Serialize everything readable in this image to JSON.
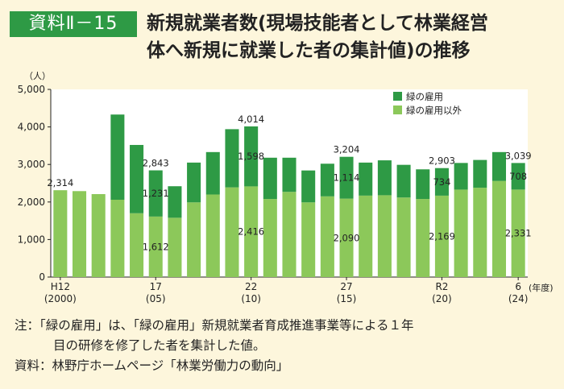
{
  "header": {
    "badge": "資料Ⅱ－15",
    "title_line1": "新規就業者数(現場技能者として林業経営",
    "title_line2": "体へ新規に就業した者の集計値)の推移"
  },
  "chart_data": {
    "type": "bar",
    "stacked": true,
    "y_unit": "（人）",
    "x_unit": "(年度)",
    "ylim": [
      0,
      5000
    ],
    "yticks": [
      "0",
      "1,000",
      "2,000",
      "3,000",
      "4,000",
      "5,000"
    ],
    "x": [
      2000,
      2001,
      2002,
      2003,
      2004,
      2005,
      2006,
      2007,
      2008,
      2009,
      2010,
      2011,
      2012,
      2013,
      2014,
      2015,
      2016,
      2017,
      2018,
      2019,
      2020,
      2021,
      2022,
      2023,
      2024
    ],
    "xtick_labels": [
      {
        "index": 0,
        "era": "H12",
        "year": "(2000)"
      },
      {
        "index": 5,
        "era": "17",
        "year": "(05)"
      },
      {
        "index": 10,
        "era": "22",
        "year": "(10)"
      },
      {
        "index": 15,
        "era": "27",
        "year": "(15)"
      },
      {
        "index": 20,
        "era": "R2",
        "year": "(20)"
      },
      {
        "index": 24,
        "era": "6",
        "year": "(24)"
      }
    ],
    "series": [
      {
        "name": "緑の雇用以外",
        "color": "#8cc85a",
        "values": [
          2314,
          2290,
          2210,
          2060,
          1700,
          1612,
          1580,
          1990,
          2200,
          2390,
          2416,
          2080,
          2270,
          1990,
          2150,
          2090,
          2170,
          2180,
          2120,
          2080,
          2169,
          2330,
          2380,
          2560,
          2331
        ]
      },
      {
        "name": "緑の雇用",
        "color": "#2e9a45",
        "values": [
          0,
          0,
          0,
          2270,
          1820,
          1231,
          840,
          1060,
          1130,
          1550,
          1598,
          1100,
          910,
          850,
          870,
          1114,
          880,
          930,
          870,
          790,
          734,
          710,
          740,
          770,
          708
        ]
      }
    ],
    "totals": [
      {
        "index": 0,
        "label": "2,314"
      },
      {
        "index": 5,
        "label": "2,843"
      },
      {
        "index": 10,
        "label": "4,014"
      },
      {
        "index": 15,
        "label": "3,204"
      },
      {
        "index": 20,
        "label": "2,903"
      },
      {
        "index": 24,
        "label": "3,039"
      }
    ],
    "segment_labels": [
      {
        "index": 5,
        "series": 0,
        "label": "1,612"
      },
      {
        "index": 5,
        "series": 1,
        "label": "1,231"
      },
      {
        "index": 10,
        "series": 0,
        "label": "2,416"
      },
      {
        "index": 10,
        "series": 1,
        "label": "1,598"
      },
      {
        "index": 15,
        "series": 0,
        "label": "2,090"
      },
      {
        "index": 15,
        "series": 1,
        "label": "1,114"
      },
      {
        "index": 20,
        "series": 0,
        "label": "2,169"
      },
      {
        "index": 20,
        "series": 1,
        "label": "734"
      },
      {
        "index": 24,
        "series": 0,
        "label": "2,331"
      },
      {
        "index": 24,
        "series": 1,
        "label": "708"
      }
    ],
    "legend": [
      "緑の雇用",
      "緑の雇用以外"
    ],
    "legend_position": "top-right",
    "grid": false
  },
  "notes": {
    "line1": "注：「緑の雇用」は、「緑の雇用」新規就業者育成推進事業等による１年",
    "line2": "目の研修を修了した者を集計した値。",
    "line3": "資料：林野庁ホームページ「林業労働力の動向」"
  }
}
